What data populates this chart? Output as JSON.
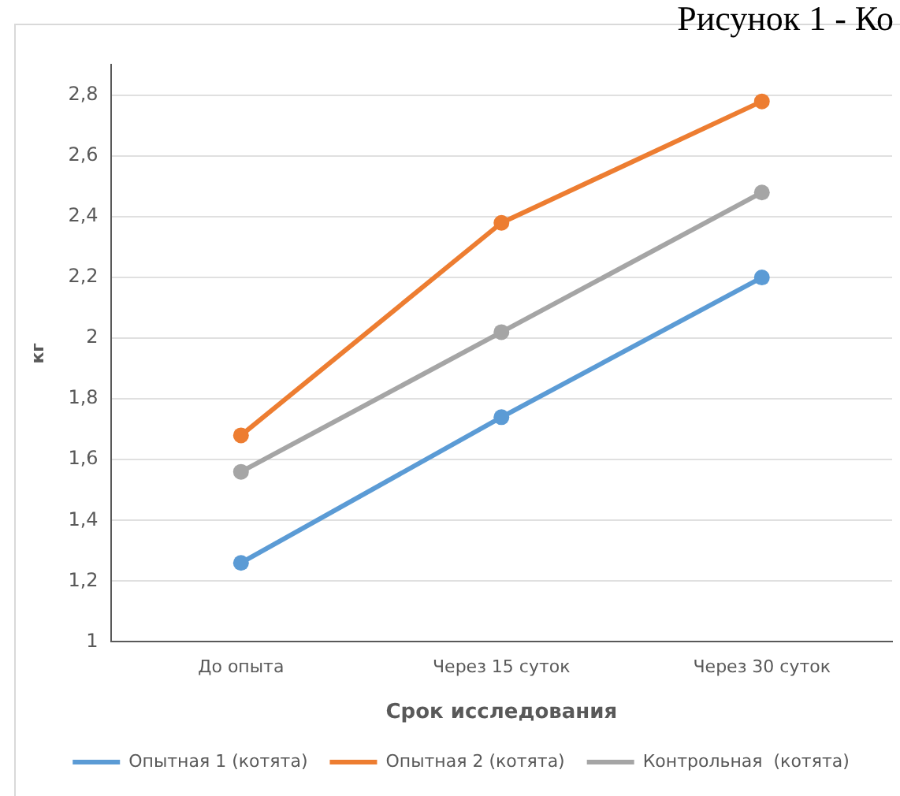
{
  "chart_data": {
    "type": "line",
    "annotations": [
      "Рисунок 1 - Ко"
    ],
    "xlabel": "Срок исследования",
    "ylabel": "кг",
    "categories": [
      "До опыта",
      "Через 15 суток",
      "Через 30 суток"
    ],
    "series": [
      {
        "name": "Опытная 1 (котята)",
        "color": "#5b9bd5",
        "values": [
          1.26,
          1.74,
          2.2
        ]
      },
      {
        "name": "Опытная 2 (котята)",
        "color": "#ed7d31",
        "values": [
          1.68,
          2.38,
          2.78
        ]
      },
      {
        "name": "Контрольная  (котята)",
        "color": "#a5a5a5",
        "values": [
          1.56,
          2.02,
          2.48
        ]
      }
    ],
    "ylim": [
      1,
      2.9
    ],
    "yticks": [
      1,
      {
        "value": 1.2,
        "label": "1,2"
      },
      {
        "value": 1.4,
        "label": "1,4"
      },
      {
        "value": 1.6,
        "label": "1,6"
      },
      {
        "value": 1.8,
        "label": "1,8"
      },
      2,
      {
        "value": 2.2,
        "label": "2,2"
      },
      {
        "value": 2.4,
        "label": "2,4"
      },
      {
        "value": 2.6,
        "label": "2,6"
      },
      {
        "value": 2.8,
        "label": "2,8"
      }
    ],
    "grid": "y",
    "legend": "bottom",
    "marker": "circle",
    "line_style": "solid"
  }
}
